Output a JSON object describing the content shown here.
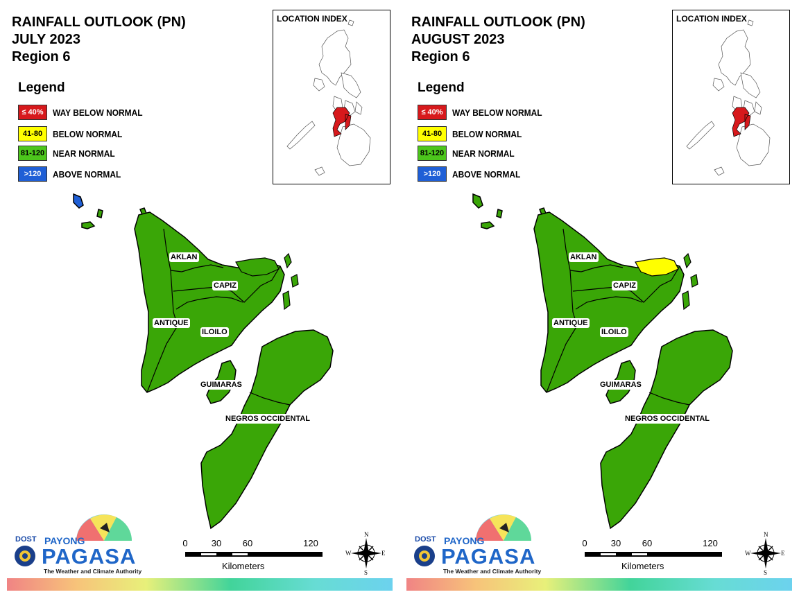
{
  "panels": [
    {
      "title_line1": "RAINFALL OUTLOOK (PN)",
      "title_line2": "JULY 2023",
      "title_line3": "Region 6",
      "legend_title": "Legend",
      "legend": [
        {
          "swatch": "≤ 40%",
          "label": "WAY BELOW NORMAL",
          "color": "#d7191c",
          "text_color": "#ffffff"
        },
        {
          "swatch": "41-80",
          "label": "BELOW NORMAL",
          "color": "#ffff00",
          "text_color": "#000000"
        },
        {
          "swatch": "81-120",
          "label": "NEAR NORMAL",
          "color": "#4cc61c",
          "text_color": "#000000"
        },
        {
          "swatch": ">120",
          "label": "ABOVE NORMAL",
          "color": "#1f5fd6",
          "text_color": "#ffffff"
        }
      ],
      "inset_title": "LOCATION INDEX",
      "provinces": {
        "aklan": "AKLAN",
        "capiz": "CAPIZ",
        "antique": "ANTIQUE",
        "iloilo": "ILOILO",
        "guimaras": "GUIMARAS",
        "negros": "NEGROS OCCIDENTAL"
      },
      "province_color": "#3aa607",
      "capiz_ne_color": "#3aa607",
      "islet_color": "#1f5fd6",
      "scale": {
        "ticks": [
          "0",
          "30",
          "60",
          "120"
        ],
        "unit": "Kilometers"
      },
      "compass": {
        "n": "N",
        "s": "S",
        "e": "E",
        "w": "W"
      },
      "logo": {
        "dost": "DOST",
        "payong": "PAYONG",
        "pagasa": "PAGASA",
        "tagline": "The Weather and Climate Authority"
      }
    },
    {
      "title_line1": "RAINFALL OUTLOOK (PN)",
      "title_line2": "AUGUST 2023",
      "title_line3": "Region 6",
      "legend_title": "Legend",
      "legend": [
        {
          "swatch": "≤ 40%",
          "label": "WAY BELOW NORMAL",
          "color": "#d7191c",
          "text_color": "#ffffff"
        },
        {
          "swatch": "41-80",
          "label": "BELOW NORMAL",
          "color": "#ffff00",
          "text_color": "#000000"
        },
        {
          "swatch": "81-120",
          "label": "NEAR NORMAL",
          "color": "#4cc61c",
          "text_color": "#000000"
        },
        {
          "swatch": ">120",
          "label": "ABOVE NORMAL",
          "color": "#1f5fd6",
          "text_color": "#ffffff"
        }
      ],
      "inset_title": "LOCATION INDEX",
      "provinces": {
        "aklan": "AKLAN",
        "capiz": "CAPIZ",
        "antique": "ANTIQUE",
        "iloilo": "ILOILO",
        "guimaras": "GUIMARAS",
        "negros": "NEGROS OCCIDENTAL"
      },
      "province_color": "#3aa607",
      "capiz_ne_color": "#ffff00",
      "islet_color": "#3aa607",
      "scale": {
        "ticks": [
          "0",
          "30",
          "60",
          "120"
        ],
        "unit": "Kilometers"
      },
      "compass": {
        "n": "N",
        "s": "S",
        "e": "E",
        "w": "W"
      },
      "logo": {
        "dost": "DOST",
        "payong": "PAYONG",
        "pagasa": "PAGASA",
        "tagline": "The Weather and Climate Authority"
      }
    }
  ]
}
